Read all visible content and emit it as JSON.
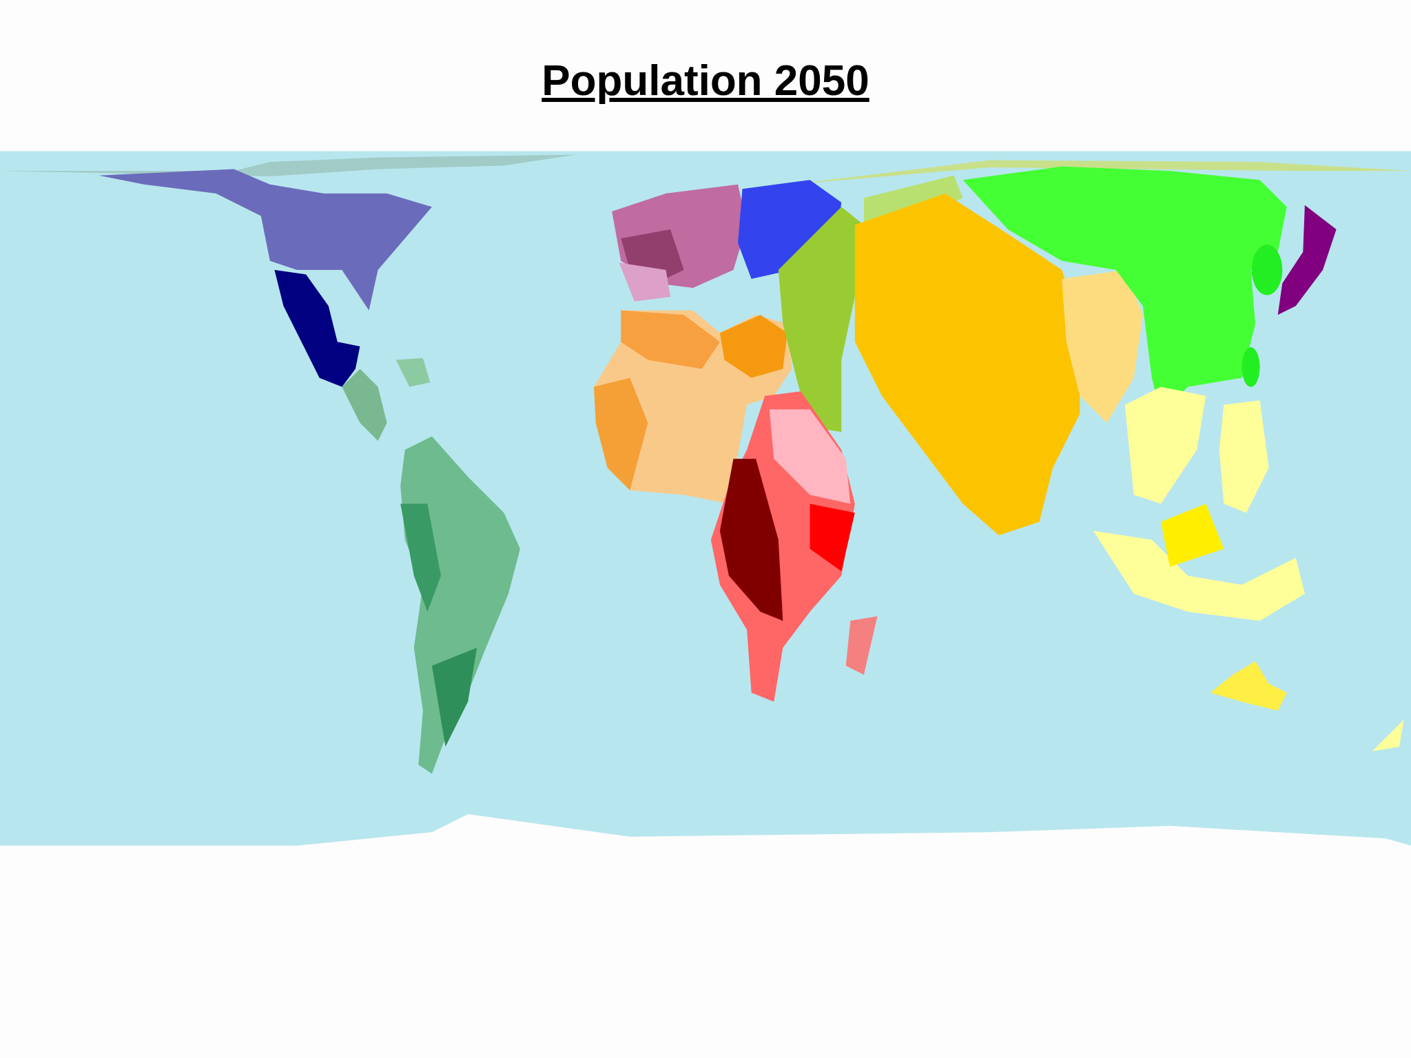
{
  "title": "Population 2050"
}
